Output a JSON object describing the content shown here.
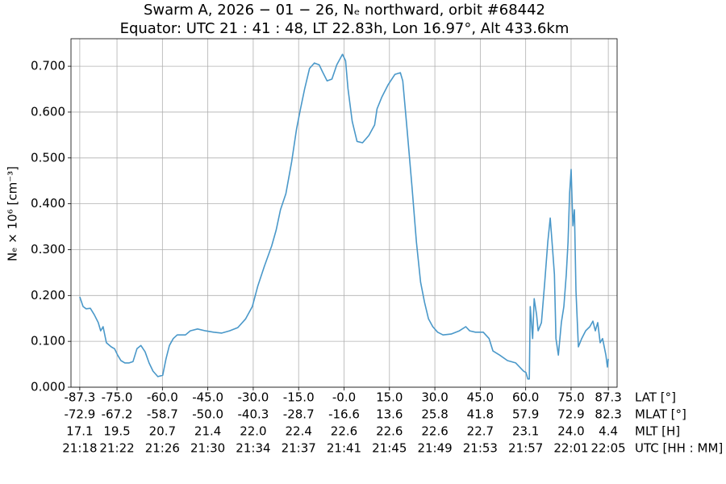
{
  "chart_data": {
    "type": "line",
    "title": "Swarm A,  2026 − 01 − 26,  Nₑ northward,  orbit #68442",
    "subtitle": "Equator:  UTC 21 : 41 : 48,  LT 22.83h,  Lon 16.97°,  Alt 433.6km",
    "ylabel": "Nₑ × 10⁶ [cm⁻³]",
    "xlabel": "LAT [°]",
    "grid": true,
    "xlim": [
      -90.2,
      90.2
    ],
    "ylim": [
      0,
      0.76
    ],
    "xticks": [
      -87.3,
      {
        "value": -75,
        "label": "-75.0"
      },
      {
        "value": -60,
        "label": "-60.0"
      },
      {
        "value": -45,
        "label": "-45.0"
      },
      {
        "value": -30,
        "label": "-30.0"
      },
      {
        "value": -15,
        "label": "-15.0"
      },
      {
        "value": 0,
        "label": "-0.0"
      },
      {
        "value": 15,
        "label": "15.0"
      },
      {
        "value": 30,
        "label": "30.0"
      },
      {
        "value": 45,
        "label": "45.0"
      },
      {
        "value": 60,
        "label": "60.0"
      },
      {
        "value": 75,
        "label": "75.0"
      },
      87.3
    ],
    "yticks": [
      {
        "value": 0,
        "label": "0.000"
      },
      {
        "value": 0.1,
        "label": "0.100"
      },
      {
        "value": 0.2,
        "label": "0.200"
      },
      {
        "value": 0.3,
        "label": "0.300"
      },
      {
        "value": 0.4,
        "label": "0.400"
      },
      {
        "value": 0.5,
        "label": "0.500"
      },
      {
        "value": 0.6,
        "label": "0.600"
      },
      {
        "value": 0.7,
        "label": "0.700"
      }
    ],
    "extra_tick_rows": [
      {
        "name": "MLAT [°]",
        "labels": [
          "-72.9",
          "-67.2",
          "-58.7",
          "-50.0",
          "-40.3",
          "-28.7",
          "-16.6",
          "13.6",
          "25.8",
          "41.8",
          "57.9",
          "72.9",
          "82.3"
        ]
      },
      {
        "name": "MLT [H]",
        "labels": [
          "17.1",
          "19.5",
          "20.7",
          "21.4",
          "22.0",
          "22.4",
          "22.6",
          "22.6",
          "22.6",
          "22.7",
          "23.1",
          "24.0",
          "4.4"
        ]
      },
      {
        "name": "UTC [HH : MM]",
        "labels": [
          "21:18",
          "21:22",
          "21:26",
          "21:30",
          "21:34",
          "21:37",
          "21:41",
          "21:45",
          "21:49",
          "21:53",
          "21:57",
          "22:01",
          "22:05"
        ]
      }
    ],
    "x": [
      -87.3,
      -86.2,
      -85.2,
      -83.8,
      -82.5,
      -81.2,
      -80.4,
      -79.6,
      -78.5,
      -76.9,
      -75.8,
      -74.8,
      -73.7,
      -72.4,
      -71.0,
      -69.7,
      -68.4,
      -67.1,
      -65.7,
      -64.4,
      -63.1,
      -61.5,
      -59.9,
      -58.8,
      -57.7,
      -56.4,
      -55.1,
      -52.4,
      -50.8,
      -48.4,
      -45.8,
      -43.1,
      -40.4,
      -37.8,
      -35.1,
      -32.5,
      -30.3,
      -28.5,
      -26.3,
      -23.9,
      -22.4,
      -21.0,
      -19.2,
      -17.3,
      -15.7,
      -14.4,
      -13.0,
      -11.4,
      -9.8,
      -8.2,
      -7.2,
      -5.6,
      -4.0,
      -2.4,
      -0.5,
      0.5,
      1.3,
      2.7,
      4.3,
      6.1,
      8.2,
      10.1,
      10.9,
      12.5,
      14.6,
      16.8,
      18.6,
      19.4,
      20.8,
      22.4,
      23.9,
      25.3,
      26.6,
      27.9,
      29.3,
      30.9,
      32.7,
      35.4,
      38.1,
      40.2,
      41.5,
      43.4,
      46.0,
      47.9,
      49.2,
      51.4,
      54.0,
      56.7,
      59.3,
      60.1,
      60.7,
      61.2,
      61.5,
      62.3,
      62.8,
      63.6,
      64.1,
      65.2,
      66.3,
      67.3,
      68.1,
      68.9,
      69.5,
      70.0,
      70.8,
      71.8,
      72.6,
      73.4,
      74.0,
      74.5,
      75.0,
      75.6,
      76.1,
      76.6,
      77.4,
      78.5,
      79.8,
      81.2,
      82.2,
      83.0,
      83.8,
      84.6,
      85.4,
      86.5,
      87.0,
      87.3
    ],
    "series": [
      {
        "color": "#4a98c9",
        "values": [
          0.197,
          0.176,
          0.171,
          0.172,
          0.158,
          0.141,
          0.123,
          0.132,
          0.097,
          0.088,
          0.084,
          0.07,
          0.058,
          0.053,
          0.053,
          0.056,
          0.084,
          0.091,
          0.077,
          0.053,
          0.035,
          0.023,
          0.026,
          0.062,
          0.091,
          0.106,
          0.114,
          0.114,
          0.123,
          0.127,
          0.123,
          0.12,
          0.118,
          0.123,
          0.13,
          0.149,
          0.176,
          0.22,
          0.264,
          0.308,
          0.343,
          0.387,
          0.422,
          0.492,
          0.563,
          0.607,
          0.651,
          0.695,
          0.707,
          0.703,
          0.689,
          0.668,
          0.672,
          0.703,
          0.726,
          0.712,
          0.651,
          0.58,
          0.536,
          0.533,
          0.549,
          0.572,
          0.607,
          0.633,
          0.66,
          0.682,
          0.686,
          0.668,
          0.563,
          0.44,
          0.317,
          0.229,
          0.185,
          0.149,
          0.132,
          0.12,
          0.114,
          0.116,
          0.123,
          0.132,
          0.123,
          0.12,
          0.12,
          0.106,
          0.079,
          0.07,
          0.058,
          0.053,
          0.035,
          0.032,
          0.018,
          0.018,
          0.176,
          0.106,
          0.193,
          0.158,
          0.123,
          0.141,
          0.229,
          0.317,
          0.369,
          0.299,
          0.246,
          0.106,
          0.07,
          0.141,
          0.176,
          0.246,
          0.317,
          0.422,
          0.475,
          0.352,
          0.387,
          0.211,
          0.088,
          0.106,
          0.123,
          0.132,
          0.144,
          0.123,
          0.141,
          0.097,
          0.106,
          0.07,
          0.044,
          0.062
        ]
      }
    ]
  }
}
